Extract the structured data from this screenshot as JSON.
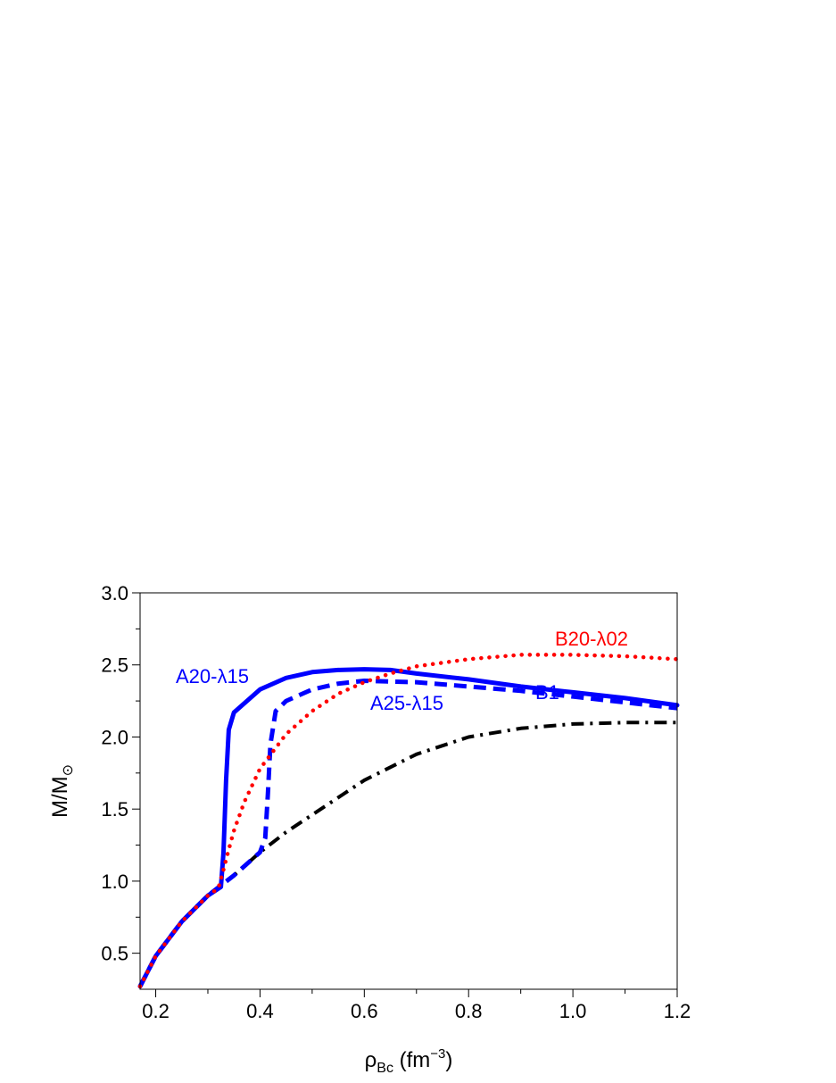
{
  "chart_data": {
    "type": "line",
    "xlabel": {
      "main": "ρ",
      "sub": "Bc",
      "unit_pre": " (fm",
      "unit_sup": "−3",
      "unit_post": ")"
    },
    "ylabel": {
      "main": "M/M",
      "sub": "⊙"
    },
    "xlim": [
      0.17,
      1.2
    ],
    "ylim": [
      0.25,
      3.0
    ],
    "xticks": [
      0.2,
      0.4,
      0.6,
      0.8,
      1.0,
      1.2
    ],
    "xtick_labels": [
      "0.2",
      "0.4",
      "0.6",
      "0.8",
      "1.0",
      "1.2"
    ],
    "yticks": [
      0.5,
      1.0,
      1.5,
      2.0,
      2.5,
      3.0
    ],
    "ytick_labels": [
      "0.5",
      "1.0",
      "1.5",
      "2.0",
      "2.5",
      "3.0"
    ],
    "grid": false,
    "legend": "none",
    "series": [
      {
        "name": "B1",
        "style": "dashdot",
        "color": "#000000",
        "x": [
          0.17,
          0.2,
          0.25,
          0.3,
          0.35,
          0.4,
          0.45,
          0.5,
          0.6,
          0.7,
          0.8,
          0.9,
          1.0,
          1.1,
          1.2
        ],
        "y": [
          0.27,
          0.48,
          0.72,
          0.9,
          1.04,
          1.2,
          1.34,
          1.46,
          1.7,
          1.88,
          2.0,
          2.06,
          2.09,
          2.1,
          2.1
        ]
      },
      {
        "name": "A25-λ15",
        "style": "dashed",
        "color": "#0000ff",
        "x": [
          0.17,
          0.2,
          0.25,
          0.3,
          0.35,
          0.4,
          0.41,
          0.415,
          0.42,
          0.43,
          0.45,
          0.5,
          0.55,
          0.6,
          0.7,
          0.8,
          0.9,
          1.0,
          1.1,
          1.2
        ],
        "y": [
          0.27,
          0.48,
          0.72,
          0.9,
          1.04,
          1.2,
          1.3,
          1.6,
          1.95,
          2.18,
          2.25,
          2.33,
          2.37,
          2.39,
          2.38,
          2.35,
          2.32,
          2.28,
          2.24,
          2.2
        ]
      },
      {
        "name": "A20-λ15",
        "style": "solid",
        "color": "#0000ff",
        "x": [
          0.17,
          0.2,
          0.25,
          0.3,
          0.325,
          0.33,
          0.335,
          0.34,
          0.35,
          0.4,
          0.45,
          0.5,
          0.55,
          0.6,
          0.65,
          0.7,
          0.8,
          0.9,
          1.0,
          1.1,
          1.2
        ],
        "y": [
          0.27,
          0.48,
          0.72,
          0.9,
          0.96,
          1.2,
          1.7,
          2.05,
          2.17,
          2.33,
          2.41,
          2.45,
          2.465,
          2.47,
          2.465,
          2.44,
          2.4,
          2.35,
          2.31,
          2.27,
          2.22
        ]
      },
      {
        "name": "B20-λ02",
        "style": "dotted",
        "color": "#ff0000",
        "x": [
          0.17,
          0.2,
          0.25,
          0.3,
          0.32,
          0.33,
          0.34,
          0.35,
          0.37,
          0.4,
          0.45,
          0.5,
          0.55,
          0.6,
          0.65,
          0.7,
          0.8,
          0.9,
          1.0,
          1.1,
          1.2
        ],
        "y": [
          0.27,
          0.48,
          0.72,
          0.9,
          0.95,
          1.08,
          1.22,
          1.35,
          1.55,
          1.78,
          2.02,
          2.18,
          2.3,
          2.38,
          2.44,
          2.49,
          2.54,
          2.57,
          2.57,
          2.56,
          2.54
        ]
      }
    ],
    "annotations": [
      {
        "text": "A20-λ15",
        "color": "#0000ff"
      },
      {
        "text": "A25-λ15",
        "color": "#0000ff"
      },
      {
        "text": "B20-λ02",
        "color": "#ff0000"
      },
      {
        "text": "B1",
        "color": "#0000ff"
      }
    ]
  }
}
